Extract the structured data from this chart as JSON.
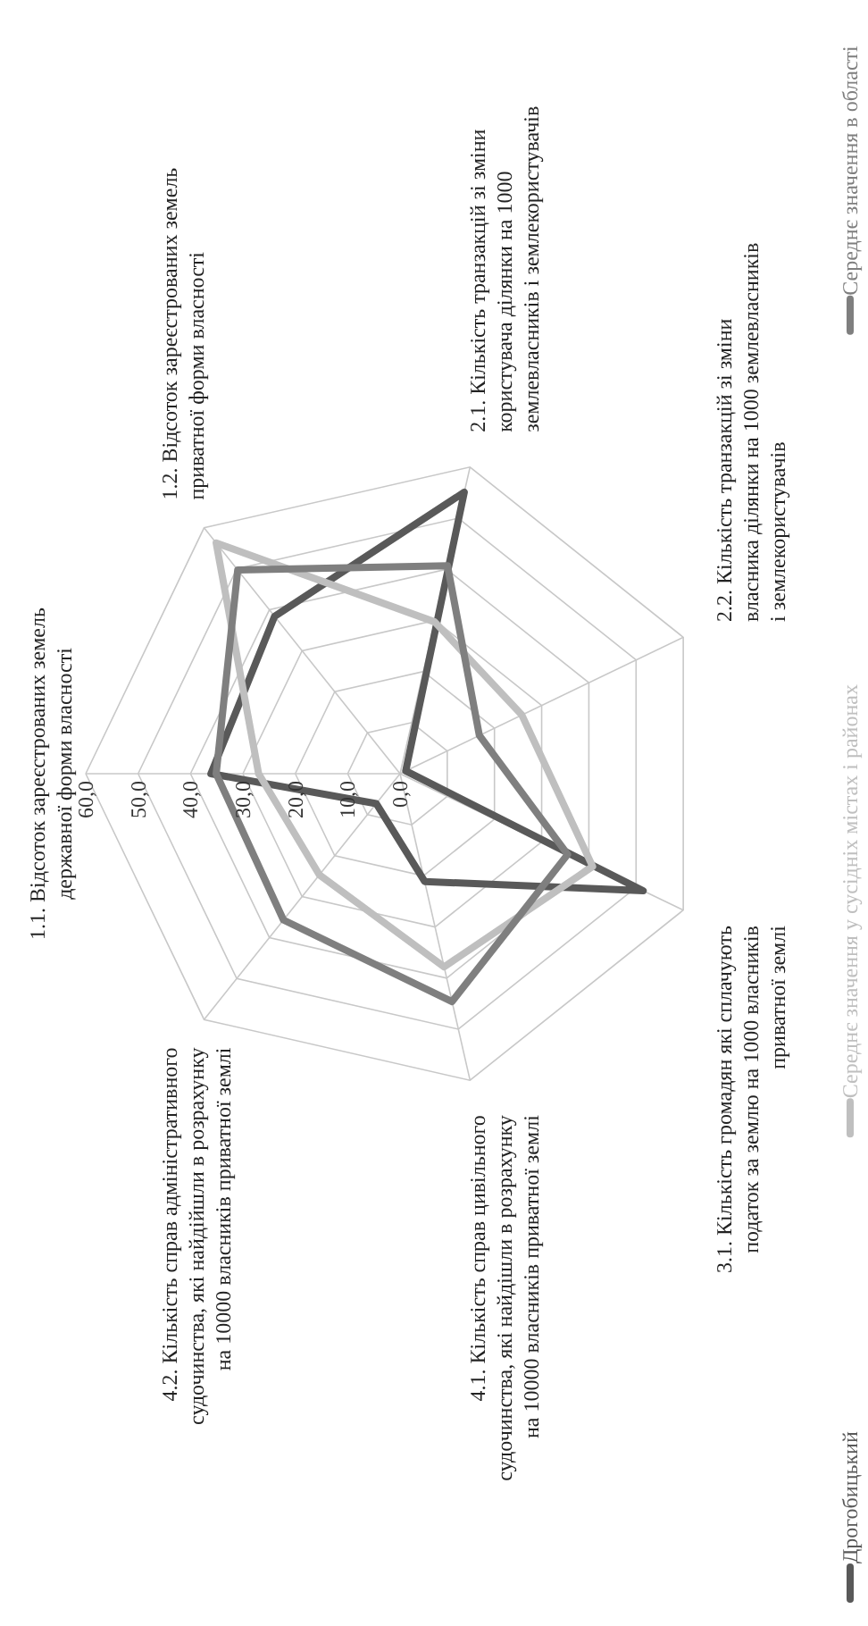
{
  "chart_data": {
    "type": "radar",
    "categories": [
      "1.1. Відсоток зареєстрованих земель державної форми власності",
      "1.2. Відсоток зареєстрованих земель приватної форми власності",
      "2.1. Кількість транзакцій зі зміни користувача ділянки на 1000 землевласників і землекористувачів",
      "2.2. Кількість транзакцій зі зміни власника ділянки на 1000 землевласників і землекористувачів",
      "3.1. Кількість громадян які сплачують податок за землю на 1000 власників приватної землі",
      "4.1. Кількість справ цивільного судочинства, які найдішли в розрахунку на 10000 власників приватної землі",
      "4.2. Кількість справ адміністративного судочинства, які найдійшли в розрахунку на 10000 власників приватної землі"
    ],
    "series": [
      {
        "name": "Дрогобицький",
        "color": "#595959",
        "values": [
          36.1,
          38.4,
          55.1,
          1.2,
          51.5,
          21.1,
          7.3
        ]
      },
      {
        "name": "Середнє значення у сусідніх містах і районах",
        "color": "#bfbfbf",
        "values": [
          27.0,
          56.3,
          29.7,
          25.8,
          40.8,
          37.8,
          24.7
        ]
      },
      {
        "name": "Середнє значення в області",
        "color": "#7f7f7f",
        "values": [
          35.1,
          49.7,
          40.7,
          16.8,
          35.5,
          44.6,
          35.7
        ]
      }
    ],
    "ylim": [
      0,
      60
    ],
    "yticks": [
      {
        "value": 0,
        "label": "0,0"
      },
      {
        "value": 10,
        "label": "10,0"
      },
      {
        "value": 20,
        "label": "20,0"
      },
      {
        "value": 30,
        "label": "30,0"
      },
      {
        "value": 40,
        "label": "40,0"
      },
      {
        "value": 50,
        "label": "50,0"
      },
      {
        "value": 60,
        "label": "60,0"
      }
    ],
    "grid": true,
    "legend": "bottom"
  }
}
